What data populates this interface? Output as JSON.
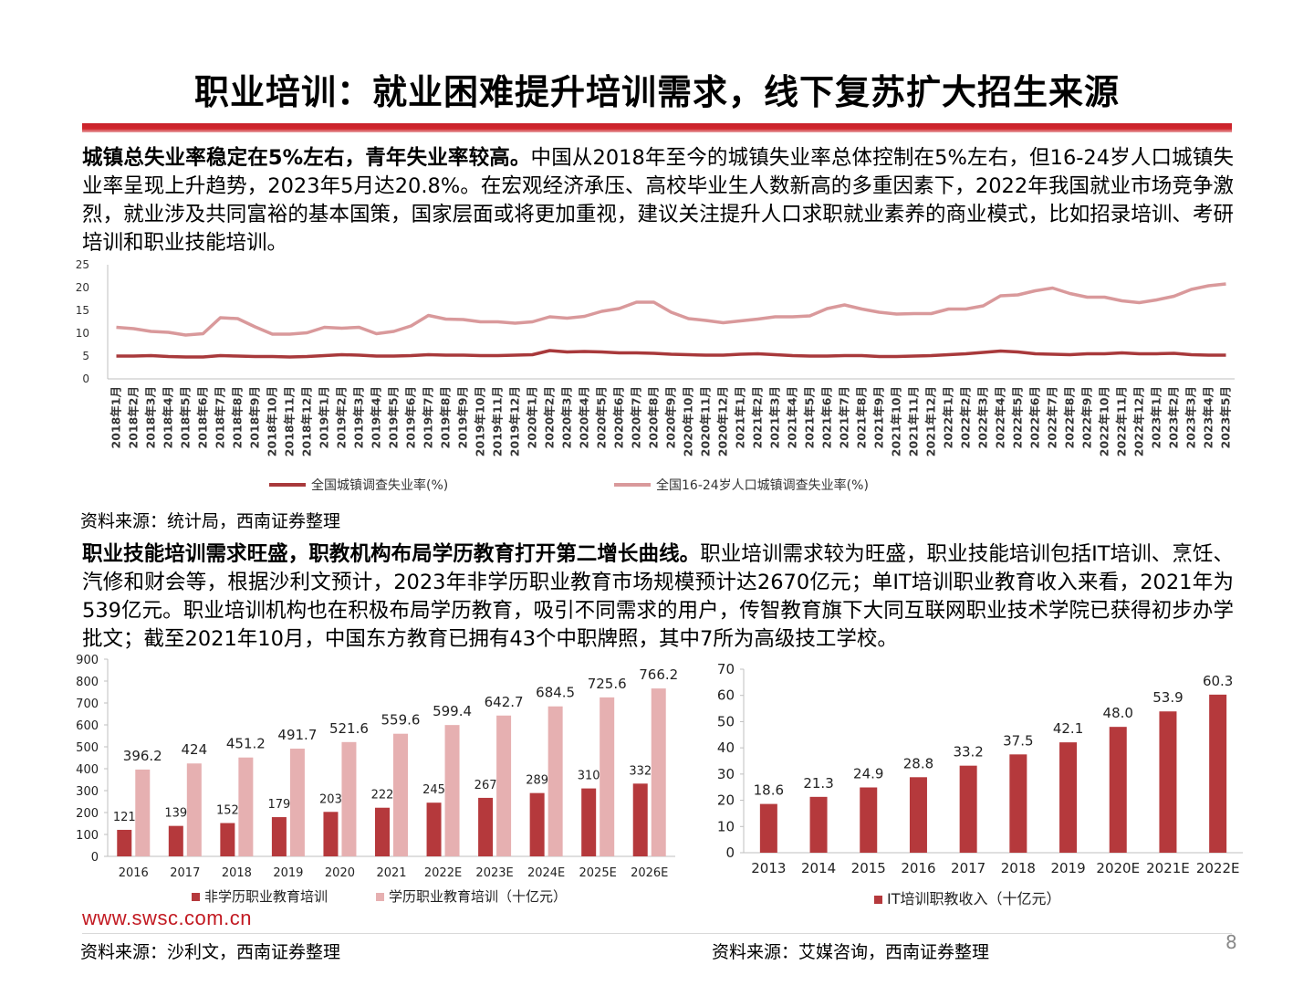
{
  "page": {
    "title": "职业培训：就业困难提升培训需求，线下复苏扩大招生来源",
    "page_number": "8",
    "logo_text": "www.swsc.com.cn"
  },
  "section1": {
    "lead": "城镇总失业率稳定在5%左右，青年失业率较高。",
    "body": "中国从2018年至今的城镇失业率总体控制在5%左右，但16-24岁人口城镇失业率呈现上升趋势，2023年5月达20.8%。在宏观经济承压、高校毕业生人数新高的多重因素下，2022年我国就业市场竞争激烈，就业涉及共同富裕的基本国策，国家层面或将更加重视，建议关注提升人口求职就业素养的商业模式，比如招录培训、考研培训和职业技能培训。",
    "source": "资料来源：统计局，西南证券整理"
  },
  "section2": {
    "lead": "职业技能培训需求旺盛，职教机构布局学历教育打开第二增长曲线。",
    "body": "职业培训需求较为旺盛，职业技能培训包括IT培训、烹饪、汽修和财会等，根据沙利文预计，2023年非学历职业教育市场规模预计达2670亿元；单IT培训职业教育收入来看，2021年为539亿元。职业培训机构也在积极布局学历教育，吸引不同需求的用户，传智教育旗下大同互联网职业技术学院已获得初步办学批文；截至2021年10月，中国东方教育已拥有43个中职牌照，其中7所为高级技工学校。",
    "source_left": "资料来源：沙利文，西南证券整理",
    "source_right": "资料来源：艾媒咨询，西南证券整理"
  },
  "colors": {
    "accent_red": "#c9222a",
    "dark_red": "#b5393c",
    "light_pink": "#e6b0b1",
    "line_dark": "#a8393b",
    "line_pink": "#d9999b"
  },
  "chart_data": [
    {
      "type": "line",
      "categories": [
        "2018年1月",
        "2018年2月",
        "2018年3月",
        "2018年4月",
        "2018年5月",
        "2018年6月",
        "2018年7月",
        "2018年8月",
        "2018年9月",
        "2018年10月",
        "2018年11月",
        "2018年12月",
        "2019年1月",
        "2019年2月",
        "2019年3月",
        "2019年4月",
        "2019年5月",
        "2019年6月",
        "2019年7月",
        "2019年8月",
        "2019年9月",
        "2019年10月",
        "2019年11月",
        "2019年12月",
        "2020年1月",
        "2020年2月",
        "2020年3月",
        "2020年4月",
        "2020年5月",
        "2020年6月",
        "2020年7月",
        "2020年8月",
        "2020年9月",
        "2020年10月",
        "2020年11月",
        "2020年12月",
        "2021年1月",
        "2021年2月",
        "2021年3月",
        "2021年4月",
        "2021年5月",
        "2021年6月",
        "2021年7月",
        "2021年8月",
        "2021年9月",
        "2021年10月",
        "2021年11月",
        "2021年12月",
        "2022年1月",
        "2022年2月",
        "2022年3月",
        "2022年4月",
        "2022年5月",
        "2022年6月",
        "2022年7月",
        "2022年8月",
        "2022年9月",
        "2022年10月",
        "2022年11月",
        "2022年12月",
        "2023年1月",
        "2023年2月",
        "2023年3月",
        "2023年4月",
        "2023年5月"
      ],
      "series": [
        {
          "name": "全国城镇调查失业率(%)",
          "values": [
            5.0,
            5.0,
            5.1,
            4.9,
            4.8,
            4.8,
            5.1,
            5.0,
            4.9,
            4.9,
            4.8,
            4.9,
            5.1,
            5.3,
            5.2,
            5.0,
            5.0,
            5.1,
            5.3,
            5.2,
            5.2,
            5.1,
            5.1,
            5.2,
            5.3,
            6.2,
            5.9,
            6.0,
            5.9,
            5.7,
            5.7,
            5.6,
            5.4,
            5.3,
            5.2,
            5.2,
            5.4,
            5.5,
            5.3,
            5.1,
            5.0,
            5.0,
            5.1,
            5.1,
            4.9,
            4.9,
            5.0,
            5.1,
            5.3,
            5.5,
            5.8,
            6.1,
            5.9,
            5.5,
            5.4,
            5.3,
            5.5,
            5.5,
            5.7,
            5.5,
            5.5,
            5.6,
            5.3,
            5.2,
            5.2
          ]
        },
        {
          "name": "全国16-24岁人口城镇调查失业率(%)",
          "values": [
            11.3,
            11.0,
            10.4,
            10.2,
            9.6,
            9.9,
            13.4,
            13.2,
            11.4,
            9.8,
            9.8,
            10.1,
            11.3,
            11.1,
            11.3,
            9.9,
            10.4,
            11.6,
            13.9,
            13.1,
            13.0,
            12.5,
            12.5,
            12.2,
            12.5,
            13.6,
            13.3,
            13.7,
            14.8,
            15.4,
            16.8,
            16.8,
            14.6,
            13.2,
            12.8,
            12.3,
            12.7,
            13.1,
            13.6,
            13.6,
            13.8,
            15.4,
            16.2,
            15.3,
            14.6,
            14.2,
            14.3,
            14.3,
            15.3,
            15.3,
            16.0,
            18.2,
            18.4,
            19.3,
            19.9,
            18.7,
            17.9,
            17.9,
            17.1,
            16.7,
            17.3,
            18.1,
            19.6,
            20.4,
            20.8
          ]
        }
      ],
      "ylim": [
        0,
        25
      ],
      "yticks": [
        0,
        5,
        10,
        15,
        20,
        25
      ],
      "legend_position": "bottom"
    },
    {
      "type": "bar",
      "categories": [
        "2016",
        "2017",
        "2018",
        "2019",
        "2020",
        "2021",
        "2022E",
        "2023E",
        "2024E",
        "2025E",
        "2026E"
      ],
      "series": [
        {
          "name": "非学历职业教育培训",
          "values": [
            121,
            139,
            152,
            179,
            203,
            222,
            245,
            267,
            289,
            310,
            332
          ],
          "labels": [
            "121",
            "139",
            "152",
            "179",
            "203",
            "222",
            "245",
            "267",
            "289",
            "310",
            "332"
          ]
        },
        {
          "name": "学历职业教育培训（十亿元）",
          "values": [
            396.2,
            424,
            451.2,
            491.7,
            521.6,
            559.6,
            599.4,
            642.7,
            684.5,
            725.6,
            766.2
          ],
          "labels": [
            "396.2",
            "424",
            "451.2",
            "491.7",
            "521.6",
            "559.6",
            "599.4",
            "642.7",
            "684.5",
            "725.6",
            "766.2"
          ]
        }
      ],
      "ylim": [
        0,
        900
      ],
      "yticks": [
        0,
        100,
        200,
        300,
        400,
        500,
        600,
        700,
        800,
        900
      ],
      "legend_position": "bottom"
    },
    {
      "type": "bar",
      "categories": [
        "2013",
        "2014",
        "2015",
        "2016",
        "2017",
        "2018",
        "2019",
        "2020E",
        "2021E",
        "2022E"
      ],
      "series": [
        {
          "name": "IT培训职教收入（十亿元）",
          "values": [
            18.6,
            21.3,
            24.9,
            28.8,
            33.2,
            37.5,
            42.1,
            48.0,
            53.9,
            60.3
          ],
          "labels": [
            "18.6",
            "21.3",
            "24.9",
            "28.8",
            "33.2",
            "37.5",
            "42.1",
            "48.0",
            "53.9",
            "60.3"
          ]
        }
      ],
      "ylim": [
        0,
        70
      ],
      "yticks": [
        0,
        10,
        20,
        30,
        40,
        50,
        60,
        70
      ],
      "legend_position": "bottom"
    }
  ]
}
